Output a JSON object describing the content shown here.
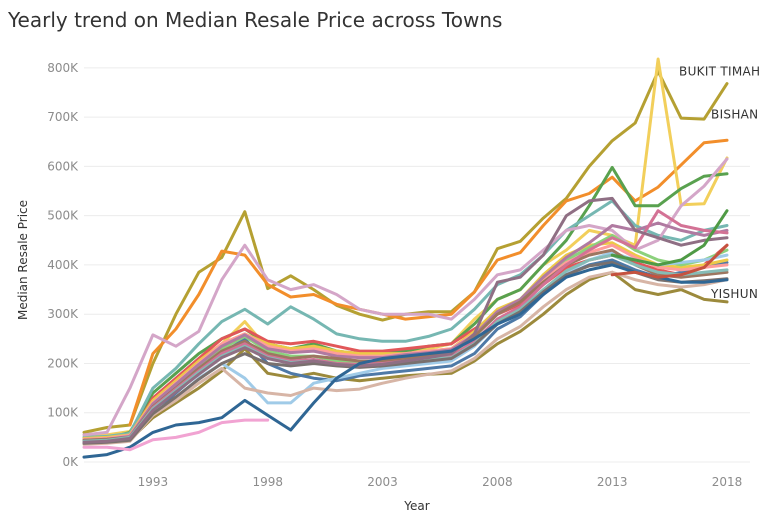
{
  "chart_data": {
    "type": "line",
    "title": "Yearly trend on Median Resale Price across Towns",
    "xlabel": "Year",
    "ylabel": "Median Resale Price",
    "xlim": [
      1990,
      2019
    ],
    "ylim": [
      0,
      820000
    ],
    "x_ticks": [
      1993,
      1998,
      2003,
      2008,
      2013,
      2018
    ],
    "x_tick_labels": [
      "1993",
      "1998",
      "2003",
      "2008",
      "2013",
      "2018"
    ],
    "y_ticks": [
      0,
      100000,
      200000,
      300000,
      400000,
      500000,
      600000,
      700000,
      800000
    ],
    "y_tick_labels": [
      "0K",
      "100K",
      "200K",
      "300K",
      "400K",
      "500K",
      "600K",
      "700K",
      "800K"
    ],
    "grid": "horizontal",
    "x": [
      1990,
      1991,
      1992,
      1993,
      1994,
      1995,
      1996,
      1997,
      1998,
      1999,
      2000,
      2001,
      2002,
      2003,
      2004,
      2005,
      2006,
      2007,
      2008,
      2009,
      2010,
      2011,
      2012,
      2013,
      2014,
      2015,
      2016,
      2017,
      2018
    ],
    "series": [
      {
        "name": "BUKIT TIMAH",
        "color": "#b5a032",
        "width": 3,
        "values": [
          60000,
          70000,
          75000,
          200000,
          300000,
          385000,
          415000,
          508000,
          352000,
          378000,
          350000,
          318000,
          300000,
          288000,
          300000,
          305000,
          305000,
          345000,
          433000,
          448000,
          495000,
          535000,
          600000,
          652000,
          688000,
          793000,
          698000,
          696000,
          768000
        ]
      },
      {
        "name": "BISHAN",
        "color": "#f28e2b",
        "width": 3,
        "values": [
          null,
          null,
          75000,
          220000,
          270000,
          340000,
          428000,
          420000,
          360000,
          335000,
          340000,
          320000,
          310000,
          300000,
          290000,
          295000,
          300000,
          345000,
          410000,
          425000,
          480000,
          530000,
          545000,
          578000,
          530000,
          558000,
          603000,
          648000,
          653000
        ]
      },
      {
        "name": "YISHUN",
        "color": "#9c8a3c",
        "width": 3,
        "values": [
          40000,
          40000,
          45000,
          90000,
          120000,
          150000,
          185000,
          230000,
          180000,
          172000,
          180000,
          170000,
          165000,
          170000,
          175000,
          178000,
          180000,
          205000,
          240000,
          265000,
          300000,
          340000,
          370000,
          385000,
          350000,
          340000,
          350000,
          330000,
          325000
        ]
      },
      {
        "color": "#f2cf5b",
        "width": 3,
        "values": [
          50000,
          55000,
          62000,
          120000,
          160000,
          200000,
          240000,
          285000,
          230000,
          225000,
          235000,
          220000,
          215000,
          215000,
          220000,
          230000,
          240000,
          290000,
          330000,
          350000,
          400000,
          430000,
          470000,
          460000,
          440000,
          818000,
          522000,
          524000,
          617000
        ]
      },
      {
        "color": "#59a14f",
        "width": 3,
        "values": [
          45000,
          48000,
          60000,
          140000,
          180000,
          220000,
          250000,
          270000,
          240000,
          230000,
          240000,
          225000,
          220000,
          220000,
          225000,
          235000,
          240000,
          280000,
          330000,
          350000,
          400000,
          450000,
          520000,
          598000,
          520000,
          520000,
          555000,
          580000,
          585000
        ]
      },
      {
        "color": "#76b7b2",
        "width": 3,
        "values": [
          50000,
          52000,
          58000,
          150000,
          190000,
          240000,
          285000,
          310000,
          280000,
          315000,
          290000,
          260000,
          250000,
          245000,
          245000,
          255000,
          270000,
          310000,
          360000,
          380000,
          420000,
          470000,
          500000,
          530000,
          480000,
          460000,
          450000,
          470000,
          480000
        ]
      },
      {
        "color": "#d4a6c8",
        "width": 3,
        "values": [
          55000,
          60000,
          150000,
          258000,
          235000,
          265000,
          370000,
          440000,
          370000,
          350000,
          360000,
          340000,
          310000,
          300000,
          300000,
          300000,
          290000,
          330000,
          380000,
          390000,
          430000,
          470000,
          480000,
          470000,
          430000,
          450000,
          520000,
          560000,
          615000
        ]
      },
      {
        "color": "#e15759",
        "width": 3,
        "values": [
          45000,
          45000,
          50000,
          130000,
          170000,
          210000,
          250000,
          270000,
          245000,
          240000,
          245000,
          235000,
          225000,
          225000,
          230000,
          235000,
          240000,
          270000,
          300000,
          320000,
          360000,
          395000,
          410000,
          420000,
          405000,
          390000,
          380000,
          400000,
          440000
        ]
      },
      {
        "color": "#4e79a7",
        "width": 3,
        "values": [
          40000,
          40000,
          45000,
          100000,
          140000,
          180000,
          220000,
          250000,
          200000,
          180000,
          170000,
          165000,
          175000,
          180000,
          185000,
          190000,
          195000,
          220000,
          270000,
          295000,
          340000,
          380000,
          400000,
          410000,
          390000,
          375000,
          385000,
          395000,
          405000
        ]
      },
      {
        "color": "#edc948",
        "width": 3,
        "values": [
          48000,
          50000,
          55000,
          125000,
          165000,
          205000,
          240000,
          260000,
          240000,
          230000,
          235000,
          225000,
          220000,
          220000,
          220000,
          225000,
          230000,
          265000,
          310000,
          330000,
          380000,
          420000,
          440000,
          445000,
          420000,
          400000,
          395000,
          400000,
          410000
        ]
      },
      {
        "color": "#8cd17d",
        "width": 3,
        "values": [
          42000,
          45000,
          52000,
          115000,
          155000,
          195000,
          230000,
          255000,
          225000,
          215000,
          215000,
          205000,
          200000,
          200000,
          205000,
          210000,
          220000,
          255000,
          300000,
          330000,
          375000,
          410000,
          435000,
          460000,
          430000,
          410000,
          400000,
          410000,
          430000
        ]
      },
      {
        "color": "#ff9d9a",
        "width": 3,
        "values": [
          46000,
          48000,
          54000,
          120000,
          160000,
          200000,
          240000,
          260000,
          235000,
          225000,
          230000,
          220000,
          215000,
          215000,
          220000,
          225000,
          230000,
          260000,
          300000,
          325000,
          370000,
          405000,
          425000,
          440000,
          415000,
          395000,
          390000,
          395000,
          400000
        ]
      },
      {
        "color": "#b07aa1",
        "width": 3,
        "values": [
          44000,
          46000,
          52000,
          118000,
          158000,
          198000,
          235000,
          258000,
          230000,
          222000,
          225000,
          215000,
          212000,
          212000,
          218000,
          222000,
          228000,
          258000,
          305000,
          330000,
          375000,
          415000,
          445000,
          480000,
          470000,
          485000,
          470000,
          460000,
          470000
        ]
      },
      {
        "color": "#a0cbe8",
        "width": 3,
        "values": [
          38000,
          40000,
          46000,
          100000,
          130000,
          170000,
          200000,
          170000,
          120000,
          120000,
          160000,
          170000,
          180000,
          190000,
          195000,
          200000,
          205000,
          235000,
          280000,
          300000,
          345000,
          385000,
          410000,
          425000,
          410000,
          400000,
          405000,
          410000,
          420000
        ]
      },
      {
        "color": "#9d7660",
        "width": 3,
        "values": [
          44000,
          46000,
          50000,
          112000,
          150000,
          190000,
          225000,
          245000,
          220000,
          210000,
          215000,
          210000,
          205000,
          205000,
          210000,
          215000,
          222000,
          255000,
          300000,
          325000,
          365000,
          400000,
          420000,
          430000,
          400000,
          380000,
          375000,
          380000,
          385000
        ]
      },
      {
        "color": "#d37295",
        "width": 3,
        "values": [
          40000,
          42000,
          48000,
          110000,
          148000,
          185000,
          220000,
          240000,
          215000,
          205000,
          208000,
          200000,
          198000,
          200000,
          205000,
          210000,
          215000,
          245000,
          290000,
          315000,
          360000,
          400000,
          430000,
          455000,
          435000,
          510000,
          480000,
          470000,
          465000
        ]
      },
      {
        "color": "#86bcb6",
        "width": 3,
        "values": [
          42000,
          44000,
          50000,
          108000,
          145000,
          182000,
          215000,
          235000,
          212000,
          202000,
          205000,
          198000,
          195000,
          198000,
          202000,
          208000,
          212000,
          240000,
          285000,
          310000,
          350000,
          388000,
          410000,
          420000,
          400000,
          385000,
          380000,
          385000,
          390000
        ]
      },
      {
        "color": "#d7b5a6",
        "width": 3,
        "values": [
          36000,
          38000,
          42000,
          95000,
          125000,
          160000,
          190000,
          150000,
          140000,
          135000,
          150000,
          145000,
          148000,
          160000,
          170000,
          178000,
          185000,
          210000,
          250000,
          275000,
          315000,
          350000,
          375000,
          385000,
          370000,
          360000,
          355000,
          360000,
          370000
        ]
      },
      {
        "color": "#79706e",
        "width": 3,
        "values": [
          38000,
          40000,
          44000,
          98000,
          132000,
          168000,
          200000,
          220000,
          200000,
          195000,
          200000,
          195000,
          192000,
          195000,
          200000,
          205000,
          210000,
          238000,
          280000,
          305000,
          345000,
          380000,
          398000,
          405000,
          385000,
          370000,
          365000,
          368000,
          372000
        ]
      },
      {
        "color": "#8f6f84",
        "width": 3,
        "values": [
          40000,
          42000,
          48000,
          105000,
          142000,
          178000,
          212000,
          232000,
          210000,
          200000,
          205000,
          198000,
          195000,
          198000,
          205000,
          212000,
          220000,
          260000,
          365000,
          375000,
          420000,
          500000,
          530000,
          535000,
          470000,
          455000,
          440000,
          450000,
          455000
        ]
      },
      {
        "color": "#2f6694",
        "width": 3,
        "values": [
          10000,
          15000,
          30000,
          60000,
          75000,
          80000,
          90000,
          125000,
          95000,
          65000,
          120000,
          170000,
          200000,
          210000,
          215000,
          220000,
          225000,
          250000,
          280000,
          300000,
          340000,
          375000,
          390000,
          400000,
          385000,
          375000,
          365000,
          365000,
          370000
        ]
      },
      {
        "color": "#f1a3d2",
        "width": 3,
        "values": [
          30000,
          30000,
          25000,
          45000,
          50000,
          60000,
          80000,
          85000,
          85000,
          null,
          null,
          null,
          null,
          null,
          null,
          null,
          null,
          null,
          null,
          null,
          null,
          null,
          null,
          null,
          null,
          null,
          null,
          null,
          null
        ]
      },
      {
        "color": "#4f9a45",
        "width": 3,
        "values": [
          null,
          null,
          null,
          null,
          null,
          null,
          null,
          null,
          null,
          null,
          null,
          null,
          null,
          null,
          null,
          null,
          null,
          null,
          null,
          null,
          null,
          null,
          null,
          420000,
          410000,
          400000,
          410000,
          440000,
          510000
        ]
      },
      {
        "color": "#c5523f",
        "width": 3,
        "values": [
          null,
          null,
          null,
          null,
          null,
          null,
          null,
          null,
          null,
          null,
          null,
          null,
          null,
          null,
          null,
          null,
          null,
          null,
          null,
          null,
          null,
          null,
          null,
          380000,
          385000,
          375000,
          380000,
          395000,
          440000
        ]
      }
    ],
    "annotations": [
      {
        "text": "BUKIT TIMAH",
        "series": "BUKIT TIMAH",
        "x": 2018,
        "y": 793000
      },
      {
        "text": "BISHAN",
        "series": "BISHAN",
        "x": 2018,
        "y": 653000
      },
      {
        "text": "YISHUN",
        "series": "YISHUN",
        "x": 2018,
        "y": 325000
      }
    ]
  }
}
